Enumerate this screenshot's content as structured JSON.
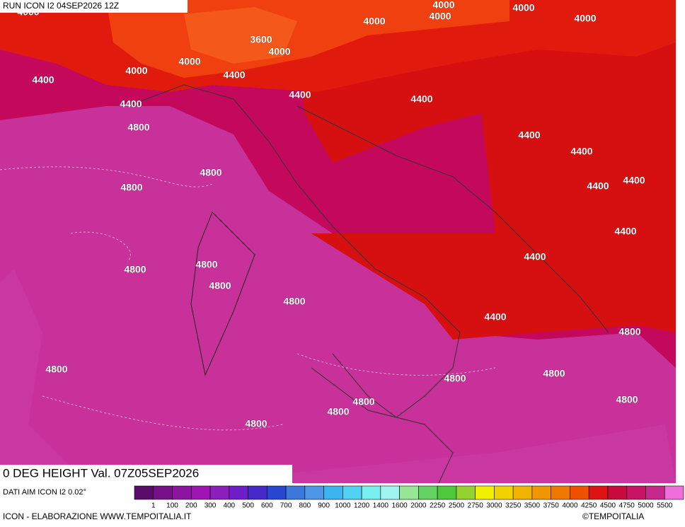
{
  "header": {
    "title": "RUN ICON I2 04SEP2026 12Z"
  },
  "map": {
    "contour_labels": [
      "4000",
      "4000",
      "4000",
      "4000",
      "4000",
      "4000",
      "4000",
      "4000",
      "4000",
      "3600",
      "4400",
      "4400",
      "4400",
      "4400",
      "4400",
      "4400",
      "4400",
      "4400",
      "4400",
      "4400",
      "4400",
      "4400",
      "4800",
      "4800",
      "4800",
      "4800",
      "4800",
      "4800",
      "4800",
      "4800",
      "4800",
      "4800",
      "4800",
      "4800",
      "4800",
      "4800",
      "4800"
    ]
  },
  "footer": {
    "title": "0 DEG HEIGHT Val. 07Z05SEP2026",
    "source": "DATI AIM ICON I2 0.02°",
    "legend_labels": [
      "1",
      "100",
      "200",
      "300",
      "400",
      "500",
      "600",
      "700",
      "800",
      "900",
      "1000",
      "1200",
      "1400",
      "1600",
      "2000",
      "2250",
      "2500",
      "2750",
      "3000",
      "3250",
      "3500",
      "3750",
      "4000",
      "4250",
      "4500",
      "4750",
      "5000",
      "5500"
    ],
    "credit": "ICON - ELABORAZIONE WWW.TEMPOITALIA.IT",
    "copyright": "©TEMPOITALIA"
  }
}
